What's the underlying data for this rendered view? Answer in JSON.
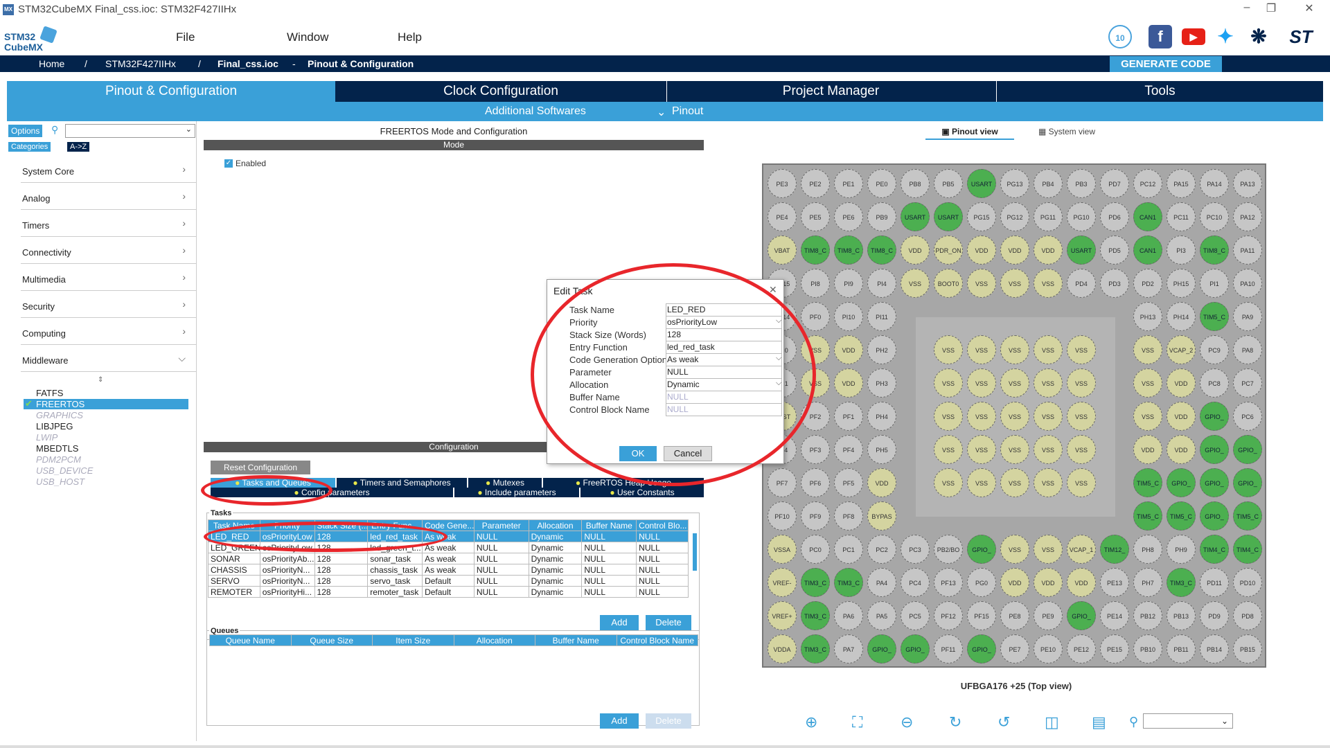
{
  "window": {
    "title": "STM32CubeMX Final_css.ioc: STM32F427IIHx",
    "logo_text": "STM32 CubeMX",
    "app_icon": "MX"
  },
  "menu": {
    "file": "File",
    "window": "Window",
    "help": "Help"
  },
  "breadcrumb": {
    "home": "Home",
    "device": "STM32F427IIHx",
    "file": "Final_css.ioc",
    "page": "Pinout & Configuration",
    "sep1": "/",
    "sep2": "/",
    "sep3": "-"
  },
  "generate": "GENERATE CODE",
  "tabs": [
    "Pinout & Configuration",
    "Clock Configuration",
    "Project Manager",
    "Tools"
  ],
  "subtabs": {
    "additional": "Additional Softwares",
    "pinout": "Pinout"
  },
  "left": {
    "options": "Options",
    "categories": "Categories",
    "az": "A->Z",
    "cats": [
      "System Core",
      "Analog",
      "Timers",
      "Connectivity",
      "Multimedia",
      "Security",
      "Computing",
      "Middleware"
    ],
    "middleware": [
      {
        "n": "FATFS",
        "d": false,
        "s": false
      },
      {
        "n": "FREERTOS",
        "d": false,
        "s": true
      },
      {
        "n": "GRAPHICS",
        "d": true,
        "s": false
      },
      {
        "n": "LIBJPEG",
        "d": false,
        "s": false
      },
      {
        "n": "LWIP",
        "d": true,
        "s": false
      },
      {
        "n": "MBEDTLS",
        "d": false,
        "s": false
      },
      {
        "n": "PDM2PCM",
        "d": true,
        "s": false
      },
      {
        "n": "USB_DEVICE",
        "d": true,
        "s": false
      },
      {
        "n": "USB_HOST",
        "d": true,
        "s": false
      }
    ]
  },
  "mid": {
    "title": "FREERTOS Mode and Configuration",
    "mode": "Mode",
    "enabled": "Enabled",
    "config": "Configuration",
    "reset": "Reset Configuration",
    "ctabs": [
      "Tasks and Queues",
      "Timers and Semaphores",
      "Mutexes",
      "FreeRTOS Heap Usage",
      "Config parameters",
      "Include parameters",
      "User Constants"
    ],
    "tasks_label": "Tasks",
    "task_cols": [
      "Task Name",
      "Priority",
      "Stack Size (...",
      "Entry Func...",
      "Code Gene...",
      "Parameter",
      "Allocation",
      "Buffer Name",
      "Control Blo..."
    ],
    "tasks": [
      [
        "LED_RED",
        "osPriorityLow",
        "128",
        "led_red_task",
        "As weak",
        "NULL",
        "Dynamic",
        "NULL",
        "NULL"
      ],
      [
        "LED_GREEN",
        "osPriorityLow",
        "128",
        "led_green_t...",
        "As weak",
        "NULL",
        "Dynamic",
        "NULL",
        "NULL"
      ],
      [
        "SONAR",
        "osPriorityAb...",
        "128",
        "sonar_task",
        "As weak",
        "NULL",
        "Dynamic",
        "NULL",
        "NULL"
      ],
      [
        "CHASSIS",
        "osPriorityN...",
        "128",
        "chassis_task",
        "As weak",
        "NULL",
        "Dynamic",
        "NULL",
        "NULL"
      ],
      [
        "SERVO",
        "osPriorityN...",
        "128",
        "servo_task",
        "Default",
        "NULL",
        "Dynamic",
        "NULL",
        "NULL"
      ],
      [
        "REMOTER",
        "osPriorityHi...",
        "128",
        "remoter_task",
        "Default",
        "NULL",
        "Dynamic",
        "NULL",
        "NULL"
      ]
    ],
    "add": "Add",
    "delete": "Delete",
    "queues_label": "Queues",
    "queue_cols": [
      "Queue Name",
      "Queue Size",
      "Item Size",
      "Allocation",
      "Buffer Name",
      "Control Block Name"
    ]
  },
  "right": {
    "pinout_view": "Pinout view",
    "system_view": "System view",
    "package": "UFBGA176 +25 (Top view)"
  },
  "dialog": {
    "title": "Edit Task",
    "ok": "OK",
    "cancel": "Cancel",
    "fields": [
      {
        "label": "Task Name",
        "value": "LED_RED"
      },
      {
        "label": "Priority",
        "value": "osPriorityLow"
      },
      {
        "label": "Stack Size (Words)",
        "value": "128"
      },
      {
        "label": "Entry Function",
        "value": "led_red_task"
      },
      {
        "label": "Code Generation Option",
        "value": "As weak"
      },
      {
        "label": "Parameter",
        "value": "NULL"
      },
      {
        "label": "Allocation",
        "value": "Dynamic"
      },
      {
        "label": "Buffer Name",
        "value": "NULL"
      },
      {
        "label": "Control Block Name",
        "value": "NULL"
      }
    ]
  },
  "pins": [
    [
      "PE3",
      "PE2",
      "PE1",
      "PE0",
      "PB8",
      "PB5",
      "USART",
      "PG13",
      "PB4",
      "PB3",
      "PD7",
      "PC12",
      "PA15",
      "PA14",
      "PA13"
    ],
    [
      "PE4",
      "PE5",
      "PE6",
      "PB9",
      "USART",
      "USART",
      "PG15",
      "PG12",
      "PG11",
      "PG10",
      "PD6",
      "CAN1",
      "PC11",
      "PC10",
      "PA12"
    ],
    [
      "VBAT",
      "TIM8_C",
      "TIM8_C",
      "TIM8_C",
      "VDD",
      "PDR_ON",
      "VDD",
      "VDD",
      "VDD",
      "USART",
      "PD5",
      "CAN1",
      "PI3",
      "TIM8_C",
      "PA11"
    ],
    [
      "PC15",
      "PI8",
      "PI9",
      "PI4",
      "VSS",
      "BOOT0",
      "VSS",
      "VSS",
      "VSS",
      "PD4",
      "PD3",
      "PD2",
      "PH15",
      "PI1",
      "PA10"
    ],
    [
      "PC14",
      "PF0",
      "PI10",
      "PI11",
      "",
      "",
      "",
      "",
      "",
      "",
      "",
      "PH13",
      "PH14",
      "TIM5_C",
      "PA9"
    ],
    [
      "PH0",
      "VSS",
      "VDD",
      "PH2",
      "",
      "VSS",
      "VSS",
      "VSS",
      "VSS",
      "VSS",
      "",
      "VSS",
      "VCAP_2",
      "PC9",
      "PA8"
    ],
    [
      "PH1",
      "VSS",
      "VDD",
      "PH3",
      "",
      "VSS",
      "VSS",
      "VSS",
      "VSS",
      "VSS",
      "",
      "VSS",
      "VDD",
      "PC8",
      "PC7"
    ],
    [
      "NRST",
      "PF2",
      "PF1",
      "PH4",
      "",
      "VSS",
      "VSS",
      "VSS",
      "VSS",
      "VSS",
      "",
      "VSS",
      "VDD",
      "GPIO_",
      "PC6"
    ],
    [
      "PF4",
      "PF3",
      "PF4",
      "PH5",
      "",
      "VSS",
      "VSS",
      "VSS",
      "VSS",
      "VSS",
      "",
      "VDD",
      "VDD",
      "GPIO_",
      "GPIO_"
    ],
    [
      "PF7",
      "PF6",
      "PF5",
      "VDD",
      "",
      "VSS",
      "VSS",
      "VSS",
      "VSS",
      "VSS",
      "",
      "TIM5_C",
      "GPIO_",
      "GPIO_",
      "GPIO_"
    ],
    [
      "PF10",
      "PF9",
      "PF8",
      "BYPAS",
      "",
      "",
      "",
      "",
      "",
      "",
      "",
      "TIM5_C",
      "TIM5_C",
      "GPIO_",
      "TIM5_C"
    ],
    [
      "VSSA",
      "PC0",
      "PC1",
      "PC2",
      "PC3",
      "PB2/BO",
      "GPIO_",
      "VSS",
      "VSS",
      "VCAP_1",
      "TIM12_",
      "PH8",
      "PH9",
      "TIM4_C",
      "TIM4_C"
    ],
    [
      "VREF-",
      "TIM3_C",
      "TIM3_C",
      "PA4",
      "PC4",
      "PF13",
      "PG0",
      "VDD",
      "VDD",
      "VDD",
      "PE13",
      "PH7",
      "TIM3_C",
      "PD11",
      "PD10"
    ],
    [
      "VREF+",
      "TIM3_C",
      "PA6",
      "PA5",
      "PC5",
      "PF12",
      "PF15",
      "PE8",
      "PE9",
      "GPIO_",
      "PE14",
      "PB12",
      "PB13",
      "PD9",
      "PD8"
    ],
    [
      "VDDA",
      "TIM3_C",
      "PA7",
      "GPIO_",
      "GPIO_",
      "PF11",
      "GPIO_",
      "PE7",
      "PE10",
      "PE12",
      "PE15",
      "PB10",
      "PB11",
      "PB14",
      "PB15"
    ]
  ]
}
